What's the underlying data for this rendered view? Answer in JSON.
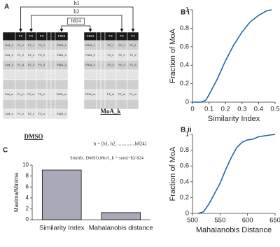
{
  "diagram": {
    "panel": "A",
    "arrows": [
      "h1",
      "h2",
      "h824"
    ],
    "left_table": {
      "header": [
        null,
        "F1",
        "F2",
        "F3",
        ".",
        ".",
        "F824"
      ],
      "rows": [
        [
          "Cell_1",
          "F1_1",
          "F2_1",
          "F3_1",
          ".",
          ".",
          "F824_1"
        ],
        [
          "Cell_2",
          "F1_2",
          "F2_2",
          "F3_2",
          ".",
          ".",
          "F824_2"
        ],
        [
          "Cell_3",
          "F1_3",
          "F2_3",
          "F3_3",
          ".",
          ".",
          "F824_3"
        ],
        [
          ".",
          ".",
          ".",
          ".",
          ".",
          ".",
          "."
        ],
        [
          ".",
          ".",
          ".",
          ".",
          ".",
          ".",
          "."
        ],
        [
          "Cell_m",
          "F1_m",
          "F2_m",
          "F3_m",
          ".",
          ".",
          "F824_m"
        ],
        [
          ".",
          ".",
          ".",
          ".",
          ".",
          ".",
          "."
        ],
        [
          "Cell_n",
          "F1_n",
          "F2_n",
          "F3_n",
          ".",
          ".",
          "F824_n"
        ]
      ],
      "label": "DMSO"
    },
    "right_table": {
      "header": [
        "F824",
        ".",
        ".",
        "F3",
        "F2",
        "F1"
      ],
      "rows": [
        [
          "F824_1",
          ".",
          ".",
          "F3_1",
          "F2_1",
          "F1_1"
        ],
        [
          "F824_2",
          ".",
          ".",
          "F3_2",
          "F2_2",
          "F1_2"
        ],
        [
          "F824_3",
          ".",
          ".",
          "F3_3",
          "F2_3",
          "F1_3"
        ],
        [
          ".",
          ".",
          ".",
          ".",
          ".",
          "."
        ],
        [
          ".",
          ".",
          ".",
          ".",
          ".",
          "."
        ],
        [
          "F824_m",
          ".",
          ".",
          "F3_m",
          "F2_m",
          "F1_m"
        ],
        [
          ".",
          ".",
          ".",
          ".",
          ".",
          "."
        ]
      ],
      "label": "MoA_k"
    },
    "formula_h": "h = [h1, h2, ..............h824]",
    "formula_sim": "SimIdx_DMSO,MoA_k = sum(~h)/ 824"
  },
  "chart_data": [
    {
      "type": "line",
      "panel": "B i",
      "x_label": "Similarity Index",
      "y_label": "Fraction of MoA",
      "x": [
        0,
        0.05,
        0.08,
        0.1,
        0.15,
        0.2,
        0.25,
        0.3,
        0.35,
        0.4,
        0.45,
        0.48
      ],
      "values": [
        0,
        0,
        0.02,
        0.08,
        0.25,
        0.45,
        0.62,
        0.76,
        0.87,
        0.94,
        0.99,
        1.0
      ],
      "color": "#2166ac",
      "xlim": [
        0,
        0.5
      ],
      "xticks": [
        0,
        0.1,
        0.2,
        0.3,
        0.4,
        0.5
      ],
      "ylim": [
        0,
        1
      ],
      "yticks": [
        0,
        0.2,
        0.4,
        0.6,
        0.8,
        1
      ]
    },
    {
      "type": "line",
      "panel": "B ii",
      "x_label": "Mahalanobis Distance",
      "y_label": "Fraction of MoA",
      "x": [
        510,
        520,
        530,
        540,
        550,
        560,
        570,
        580,
        590,
        600,
        610,
        620,
        640,
        650
      ],
      "values": [
        0,
        0.02,
        0.12,
        0.25,
        0.38,
        0.55,
        0.7,
        0.83,
        0.9,
        0.93,
        0.94,
        0.97,
        0.99,
        1.0
      ],
      "color": "#2166ac",
      "xlim": [
        500,
        650
      ],
      "xticks": [
        500,
        550,
        600,
        650
      ],
      "ylim": [
        0,
        1
      ],
      "yticks": [
        0,
        0.2,
        0.4,
        0.6,
        0.8,
        1
      ]
    },
    {
      "type": "bar",
      "panel": "C",
      "y_label": "Maxima/Minima",
      "categories": [
        "Similarity Index",
        "Mahalanobis distance"
      ],
      "values": [
        9.1,
        1.3
      ],
      "color": "#a9a9b8",
      "ylim": [
        0,
        10
      ],
      "yticks": [
        0,
        2,
        4,
        6,
        8,
        10
      ]
    }
  ]
}
